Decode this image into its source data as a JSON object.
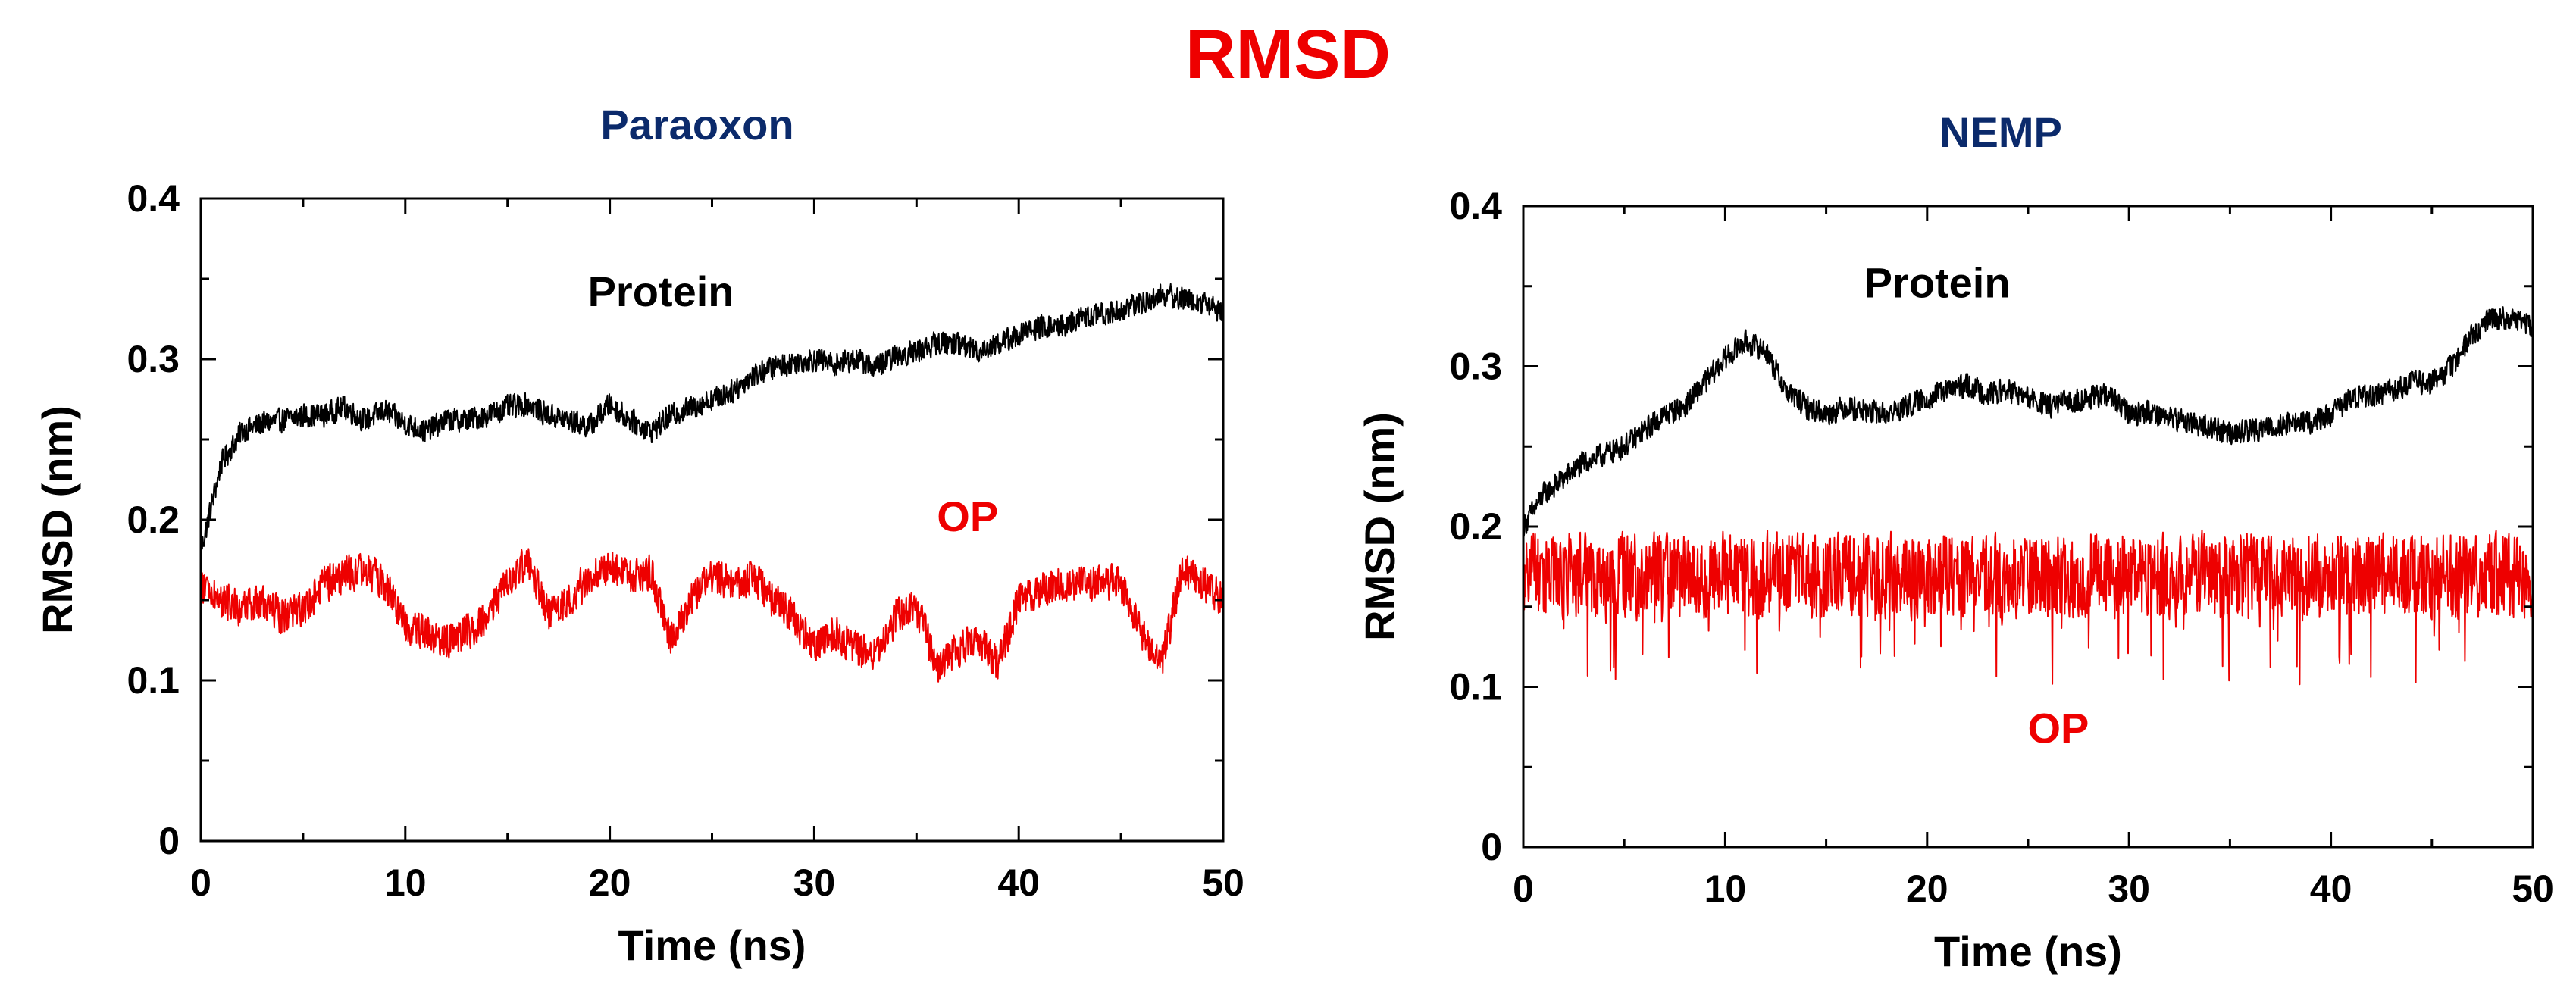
{
  "figure": {
    "title": "RMSD",
    "title_color": "#ee0000"
  },
  "chart_data": [
    {
      "type": "line",
      "title": "Paraoxon",
      "title_color": "#0b2a6b",
      "xlabel": "Time (ns)",
      "ylabel": "RMSD (nm)",
      "xlim": [
        0,
        50
      ],
      "ylim": [
        0,
        0.4
      ],
      "xticks": [
        "0",
        "10",
        "20",
        "30",
        "40",
        "50"
      ],
      "yticks": [
        "0",
        "0.1",
        "0.2",
        "0.3",
        "0.4"
      ],
      "grid": false,
      "x": [
        0,
        1,
        2,
        3,
        4,
        5,
        6,
        7,
        8,
        9,
        10,
        11,
        12,
        13,
        14,
        15,
        16,
        17,
        18,
        19,
        20,
        21,
        22,
        23,
        24,
        25,
        26,
        27,
        28,
        29,
        30,
        31,
        32,
        33,
        34,
        35,
        36,
        37,
        38,
        39,
        40,
        41,
        42,
        43,
        44,
        45,
        46,
        47,
        48,
        49,
        50
      ],
      "series": [
        {
          "name": "Protein",
          "color": "#000000",
          "values": [
            0.18,
            0.235,
            0.255,
            0.26,
            0.262,
            0.265,
            0.265,
            0.27,
            0.262,
            0.268,
            0.26,
            0.255,
            0.262,
            0.262,
            0.265,
            0.27,
            0.272,
            0.265,
            0.262,
            0.258,
            0.272,
            0.262,
            0.255,
            0.265,
            0.27,
            0.275,
            0.28,
            0.29,
            0.295,
            0.298,
            0.3,
            0.297,
            0.3,
            0.295,
            0.302,
            0.305,
            0.31,
            0.31,
            0.305,
            0.31,
            0.315,
            0.32,
            0.32,
            0.325,
            0.328,
            0.33,
            0.335,
            0.34,
            0.338,
            0.335,
            0.33
          ],
          "noise": 0.0085
        },
        {
          "name": "OP",
          "color": "#ee0000",
          "values": [
            0.16,
            0.15,
            0.145,
            0.148,
            0.14,
            0.145,
            0.16,
            0.165,
            0.17,
            0.16,
            0.135,
            0.13,
            0.125,
            0.13,
            0.14,
            0.16,
            0.175,
            0.14,
            0.15,
            0.165,
            0.17,
            0.165,
            0.168,
            0.125,
            0.15,
            0.165,
            0.16,
            0.165,
            0.15,
            0.14,
            0.12,
            0.13,
            0.12,
            0.115,
            0.14,
            0.145,
            0.11,
            0.12,
            0.125,
            0.11,
            0.15,
            0.155,
            0.16,
            0.16,
            0.162,
            0.16,
            0.13,
            0.11,
            0.17,
            0.16,
            0.15
          ],
          "noise": 0.013
        }
      ],
      "annotations": [
        {
          "text": "Protein",
          "x": 22.5,
          "y": 0.333,
          "color": "#000000"
        },
        {
          "text": "OP",
          "x": 37.5,
          "y": 0.193,
          "color": "#ee0000"
        }
      ]
    },
    {
      "type": "line",
      "title": "NEMP",
      "title_color": "#0b2a6b",
      "xlabel": "Time (ns)",
      "ylabel": "RMSD (nm)",
      "xlim": [
        0,
        50
      ],
      "ylim": [
        0,
        0.4
      ],
      "xticks": [
        "0",
        "10",
        "20",
        "30",
        "40",
        "50"
      ],
      "yticks": [
        "0",
        "0.1",
        "0.2",
        "0.3",
        "0.4"
      ],
      "grid": false,
      "x": [
        0,
        1,
        2,
        3,
        4,
        5,
        6,
        7,
        8,
        9,
        10,
        11,
        12,
        13,
        14,
        15,
        16,
        17,
        18,
        19,
        20,
        21,
        22,
        23,
        24,
        25,
        26,
        27,
        28,
        29,
        30,
        31,
        32,
        33,
        34,
        35,
        36,
        37,
        38,
        39,
        40,
        41,
        42,
        43,
        44,
        45,
        46,
        47,
        48,
        49,
        50
      ],
      "series": [
        {
          "name": "Protein",
          "color": "#000000",
          "values": [
            0.2,
            0.22,
            0.23,
            0.24,
            0.245,
            0.25,
            0.26,
            0.27,
            0.275,
            0.29,
            0.305,
            0.315,
            0.31,
            0.285,
            0.275,
            0.27,
            0.275,
            0.272,
            0.27,
            0.275,
            0.28,
            0.285,
            0.288,
            0.283,
            0.285,
            0.28,
            0.275,
            0.278,
            0.28,
            0.282,
            0.27,
            0.272,
            0.268,
            0.265,
            0.262,
            0.258,
            0.26,
            0.262,
            0.265,
            0.265,
            0.27,
            0.28,
            0.282,
            0.285,
            0.29,
            0.29,
            0.3,
            0.32,
            0.33,
            0.33,
            0.325
          ],
          "noise": 0.0085
        },
        {
          "name": "OP",
          "color": "#ee0000",
          "values": [
            0.17,
            0.17,
            0.168,
            0.17,
            0.168,
            0.17,
            0.168,
            0.17,
            0.168,
            0.17,
            0.17,
            0.168,
            0.17,
            0.17,
            0.168,
            0.17,
            0.168,
            0.17,
            0.17,
            0.168,
            0.17,
            0.17,
            0.168,
            0.17,
            0.168,
            0.17,
            0.17,
            0.168,
            0.17,
            0.17,
            0.168,
            0.17,
            0.168,
            0.17,
            0.17,
            0.168,
            0.17,
            0.17,
            0.168,
            0.17,
            0.17,
            0.168,
            0.17,
            0.17,
            0.168,
            0.17,
            0.168,
            0.17,
            0.17,
            0.168,
            0.17
          ],
          "noise": 0.03
        }
      ],
      "annotations": [
        {
          "text": "Protein",
          "x": 20.5,
          "y": 0.343,
          "color": "#000000"
        },
        {
          "text": "OP",
          "x": 26.5,
          "y": 0.065,
          "color": "#ee0000"
        }
      ]
    }
  ]
}
